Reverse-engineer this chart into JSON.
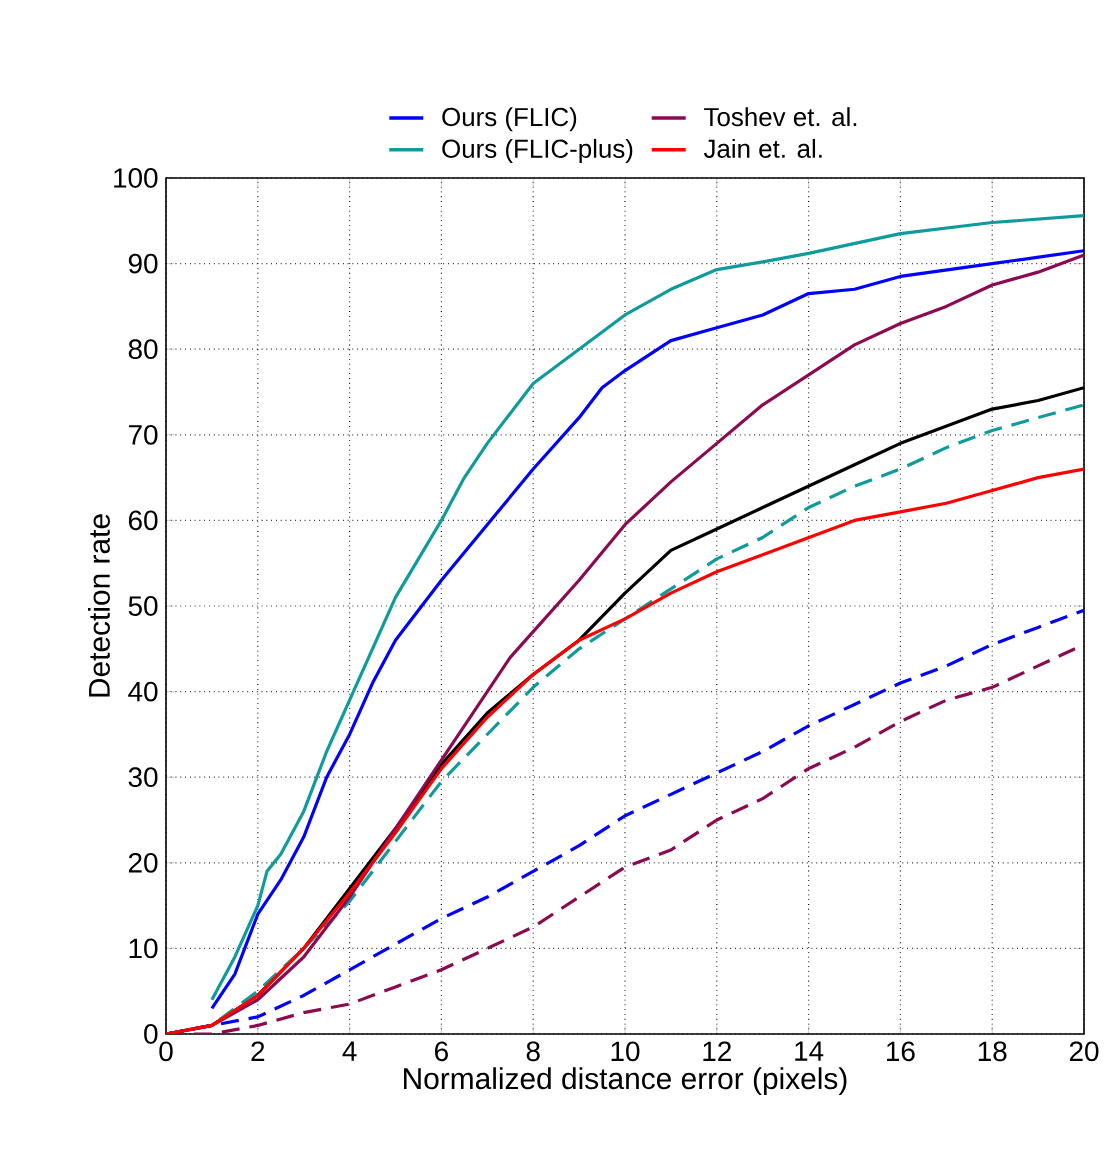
{
  "chart_data": {
    "type": "line",
    "xlabel": "Normalized distance error (pixels)",
    "ylabel": "Detection rate",
    "xlim": [
      0,
      20
    ],
    "ylim": [
      0,
      100
    ],
    "xticks": [
      0,
      2,
      4,
      6,
      8,
      10,
      12,
      14,
      16,
      18,
      20
    ],
    "yticks": [
      0,
      10,
      20,
      30,
      40,
      50,
      60,
      70,
      80,
      90,
      100
    ],
    "grid": true,
    "legend": "top",
    "marker": "none",
    "series": [
      {
        "name": "Ours (FLIC)",
        "color": "#0000ff",
        "line_style": "solid",
        "x": [
          1,
          1.5,
          2,
          2.5,
          3,
          3.5,
          4,
          4.5,
          5,
          6,
          7,
          8,
          9,
          9.5,
          10,
          11,
          12,
          13,
          14,
          15,
          16,
          18,
          20
        ],
        "values": [
          3,
          7,
          14,
          18,
          23,
          30,
          35,
          41,
          46,
          53,
          59.5,
          66,
          72,
          75.5,
          77.5,
          81,
          82.5,
          84,
          86.5,
          87,
          88.5,
          90,
          91.5
        ]
      },
      {
        "name": "Ours (FLIC-plus)",
        "color": "#0f9b9b",
        "line_style": "solid",
        "x": [
          1,
          1.5,
          2,
          2.2,
          2.5,
          3,
          3.5,
          4,
          4.5,
          5,
          6,
          6.5,
          7,
          8,
          9,
          10,
          11,
          12,
          13,
          14,
          16,
          18,
          20
        ],
        "values": [
          4,
          9,
          15,
          19,
          21,
          26,
          33,
          39,
          45,
          51,
          60,
          65,
          69,
          76,
          80,
          84,
          87,
          89.3,
          90.2,
          91.2,
          93.5,
          94.8,
          95.6
        ]
      },
      {
        "name": "Toshev et. al.",
        "color": "#8b0a50",
        "line_style": "solid",
        "x": [
          0,
          1,
          2,
          3,
          4,
          5,
          6,
          7,
          7.5,
          8,
          9,
          10,
          11,
          12,
          13,
          14,
          15,
          16,
          17,
          18,
          19,
          20
        ],
        "values": [
          0,
          1,
          4,
          9,
          16,
          24,
          32,
          40,
          44,
          47,
          53,
          59.5,
          64.5,
          69,
          73.5,
          77,
          80.5,
          83,
          85,
          87.5,
          89,
          91
        ]
      },
      {
        "name": "Jain et. al.",
        "color": "#ff0000",
        "line_style": "solid",
        "x": [
          0,
          1,
          2,
          3,
          4,
          5,
          6,
          7,
          8,
          9,
          10,
          11,
          12,
          13,
          14,
          15,
          16,
          17,
          18,
          19,
          20
        ],
        "values": [
          0,
          1,
          4.5,
          10,
          16.5,
          23.5,
          31,
          37,
          42,
          46,
          48.5,
          51.5,
          54,
          56,
          58,
          60,
          61,
          62,
          63.5,
          65,
          66
        ]
      },
      {
        "color": "#000000",
        "line_style": "solid",
        "x": [
          0,
          1,
          2,
          3,
          4,
          5,
          6,
          7,
          8,
          9,
          10,
          11,
          12,
          13,
          14,
          15,
          16,
          17,
          18,
          19,
          20
        ],
        "values": [
          0,
          1,
          4.5,
          10,
          17,
          24,
          31.5,
          37.5,
          42,
          46,
          51.5,
          56.5,
          59,
          61.5,
          64,
          66.5,
          69,
          71,
          73,
          74,
          75.5
        ]
      },
      {
        "color": "#0f9b9b",
        "line_style": "dashed",
        "x": [
          0,
          1,
          2,
          3,
          4,
          5,
          6,
          7,
          8,
          9,
          10,
          11,
          12,
          13,
          14,
          15,
          16,
          17,
          18,
          19,
          20
        ],
        "values": [
          0,
          1,
          5,
          10,
          15.5,
          22.5,
          29.5,
          35,
          40.5,
          45,
          48.5,
          52,
          55.5,
          58,
          61.5,
          64,
          66,
          68.5,
          70.5,
          72,
          73.5
        ]
      },
      {
        "color": "#0000ff",
        "line_style": "dashed",
        "x": [
          0,
          1,
          2,
          3,
          4,
          5,
          6,
          7,
          8,
          9,
          10,
          11,
          12,
          13,
          14,
          15,
          16,
          17,
          18,
          19,
          20
        ],
        "values": [
          0,
          1,
          2,
          4.5,
          7.5,
          10.5,
          13.5,
          16,
          19,
          22,
          25.5,
          28,
          30.5,
          33,
          36,
          38.5,
          41,
          43,
          45.5,
          47.5,
          49.5
        ]
      },
      {
        "color": "#8b0a50",
        "line_style": "dashed",
        "x": [
          0,
          1,
          2,
          3,
          4,
          5,
          6,
          7,
          8,
          9,
          10,
          11,
          12,
          13,
          14,
          15,
          16,
          17,
          18,
          19,
          20
        ],
        "values": [
          0,
          0,
          1,
          2.5,
          3.5,
          5.5,
          7.5,
          10,
          12.5,
          16,
          19.5,
          21.5,
          25,
          27.5,
          31,
          33.5,
          36.5,
          39,
          40.5,
          43,
          45.5
        ]
      }
    ]
  }
}
